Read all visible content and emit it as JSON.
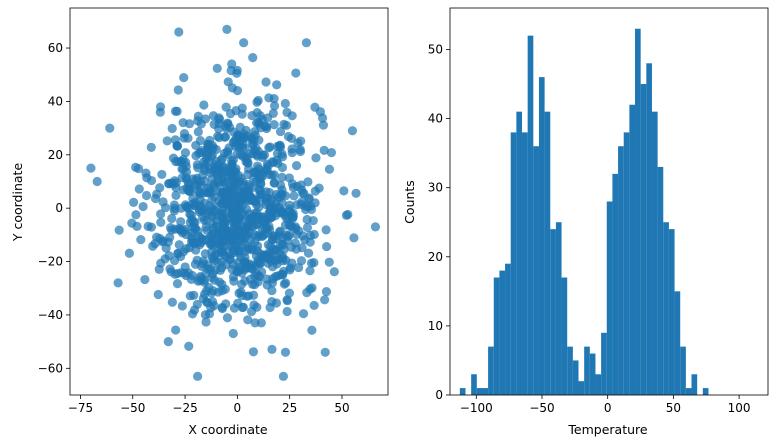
{
  "chart_data": [
    {
      "type": "scatter",
      "xlabel": "X coordinate",
      "ylabel": "Y coordinate",
      "xlim": [
        -80,
        72
      ],
      "ylim": [
        -70,
        75
      ],
      "xticks": [
        -75,
        -50,
        -25,
        0,
        25,
        50
      ],
      "yticks": [
        -60,
        -40,
        -20,
        0,
        20,
        40,
        60
      ],
      "color": "#1f77b4",
      "alpha": 0.7,
      "distribution": {
        "center": [
          0,
          0
        ],
        "spread_sd": [
          20,
          20
        ],
        "count": 1000
      },
      "outliers": [
        {
          "x": -5,
          "y": 67
        },
        {
          "x": -28,
          "y": 66
        },
        {
          "x": 33,
          "y": 62
        },
        {
          "x": 3,
          "y": 62
        },
        {
          "x": -70,
          "y": 15
        },
        {
          "x": 66,
          "y": -7
        },
        {
          "x": -19,
          "y": -63
        },
        {
          "x": 22,
          "y": -63
        },
        {
          "x": -61,
          "y": 30
        },
        {
          "x": 55,
          "y": 29
        },
        {
          "x": -33,
          "y": -50
        },
        {
          "x": 23,
          "y": -54
        },
        {
          "x": 42,
          "y": -54
        },
        {
          "x": -67,
          "y": 10
        },
        {
          "x": -57,
          "y": -28
        }
      ]
    },
    {
      "type": "histogram",
      "xlabel": "Temperature",
      "ylabel": "Counts",
      "xlim": [
        -120,
        122
      ],
      "ylim": [
        0,
        56
      ],
      "xticks": [
        -100,
        -50,
        0,
        50,
        100
      ],
      "yticks": [
        0,
        10,
        20,
        30,
        40,
        50
      ],
      "color": "#1f77b4",
      "bin_start": -112.5,
      "bin_width": 4.3,
      "counts": [
        1,
        0,
        3,
        1,
        1,
        7,
        17,
        18,
        19,
        38,
        41,
        38,
        52,
        36,
        46,
        41,
        24,
        25,
        17,
        7,
        5,
        2,
        7,
        6,
        3,
        9,
        28,
        32,
        36,
        38,
        42,
        53,
        45,
        48,
        41,
        33,
        25,
        24,
        15,
        7,
        1,
        3,
        0,
        1
      ]
    }
  ]
}
